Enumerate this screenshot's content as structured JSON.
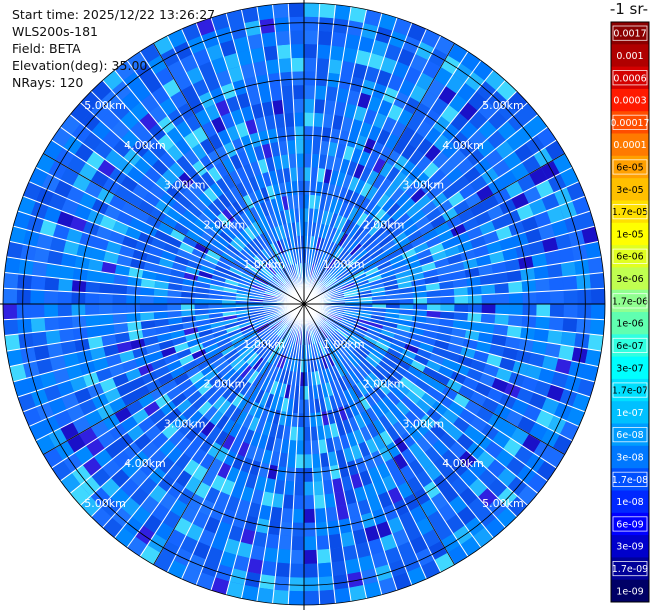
{
  "info": {
    "start_time": "Start time: 2025/12/22 13:26:27",
    "instrument": "WLS200s-181",
    "field": "Field: BETA",
    "elevation": "Elevation(deg): 35.00",
    "nrays": "NRays: 120"
  },
  "colorbar": {
    "title": "-1 sr-",
    "ticks": [
      "0.0017",
      "0.001",
      "0.0006",
      "0.0003",
      "0.00017",
      "0.0001",
      "6e-05",
      "3e-05",
      "1.7e-05",
      "1e-05",
      "6e-06",
      "3e-06",
      "1.7e-06",
      "1e-06",
      "6e-07",
      "3e-07",
      "1.7e-07",
      "1e-07",
      "6e-08",
      "3e-08",
      "1.7e-08",
      "1e-08",
      "6e-09",
      "3e-09",
      "1.7e-09",
      "1e-09"
    ],
    "colors": [
      "#8b0000",
      "#b00000",
      "#d40000",
      "#ff1a00",
      "#ff4d00",
      "#ff7a00",
      "#ffa000",
      "#ffc000",
      "#ffe000",
      "#ffff00",
      "#e0ff20",
      "#c0ff50",
      "#90ff90",
      "#60ffb0",
      "#30ffe0",
      "#00ffff",
      "#00e0ff",
      "#00c0ff",
      "#009cff",
      "#0078ff",
      "#0050ff",
      "#0028ff",
      "#0000ff",
      "#0000cc",
      "#000099",
      "#000066"
    ]
  },
  "chart_data": {
    "type": "heatmap",
    "projection": "polar",
    "field": "BETA",
    "elevation_deg": 35.0,
    "n_rays": 120,
    "range_rings_km": [
      1,
      2,
      3,
      4,
      5
    ],
    "ring_labels": [
      "1.00km",
      "2.00km",
      "3.00km",
      "4.00km",
      "5.00km"
    ],
    "max_range_km": 5.35,
    "dominant_value": "3e-08",
    "value_range": [
      "1e-09",
      "0.0017"
    ],
    "grid": true
  }
}
